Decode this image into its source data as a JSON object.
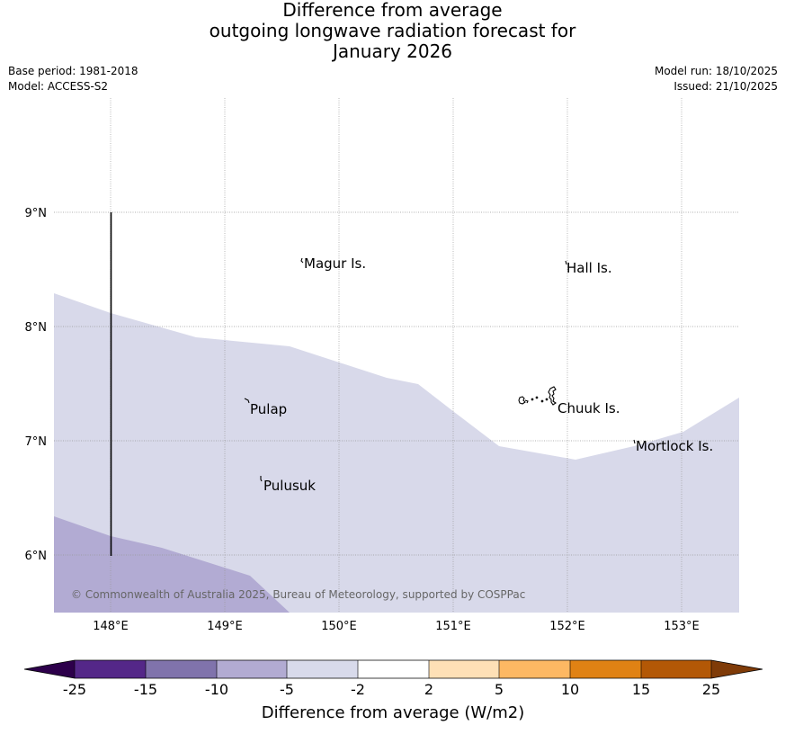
{
  "title": {
    "line1": "Difference from average",
    "line2": "outgoing longwave radiation forecast for",
    "line3": "January 2026"
  },
  "meta": {
    "base_period": "Base period: 1981-2018",
    "model": "Model: ACCESS-S2",
    "model_run": "Model run: 18/10/2025",
    "issued": "Issued: 21/10/2025"
  },
  "map": {
    "lon_labels": [
      "148°E",
      "149°E",
      "150°E",
      "151°E",
      "152°E",
      "153°E"
    ],
    "lat_labels": [
      "9°N",
      "8°N",
      "7°N",
      "6°N"
    ],
    "places": {
      "magur": "Magur Is.",
      "hall": "Hall Is.",
      "pulap": "Pulap",
      "chuuk": "Chuuk Is.",
      "mortlock": "Mortlock Is.",
      "pulusuk": "Pulusuk"
    },
    "copyright": "© Commonwealth of Australia 2025, Bureau of Meteorology, supported by COSPPac",
    "colors": {
      "band_minus5_minus2": "#d8d9ea",
      "band_minus10_minus5": "#b2abd3"
    }
  },
  "colorbar": {
    "title": "Difference from average (W/m2)",
    "ticks": [
      "-25",
      "-15",
      "-10",
      "-5",
      "-2",
      "2",
      "5",
      "10",
      "15",
      "25"
    ],
    "colors": [
      "#2d004b",
      "#542788",
      "#8073ac",
      "#b2abd2",
      "#d8daeb",
      "#ffffff",
      "#fee0b6",
      "#fdb863",
      "#e08214",
      "#b35806",
      "#7f3b08"
    ]
  }
}
